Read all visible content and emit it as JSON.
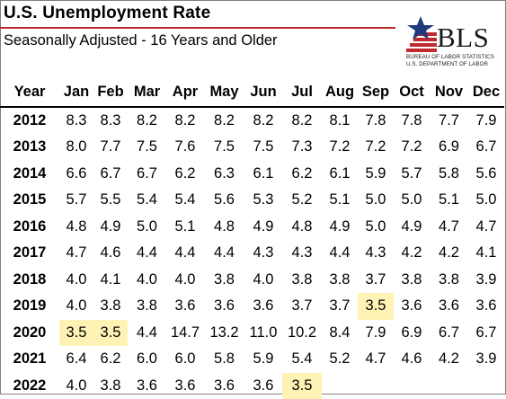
{
  "title": "U.S. Unemployment Rate",
  "subtitle": "Seasonally Adjusted - 16 Years and Older",
  "logo": {
    "name": "BLS",
    "line1": "BUREAU OF LABOR STATISTICS",
    "line2": "U.S. DEPARTMENT OF LABOR",
    "colors": {
      "red": "#c0292e",
      "blue": "#1f3a7a"
    }
  },
  "highlight_color": "#fff2b5",
  "columns": [
    "Year",
    "Jan",
    "Feb",
    "Mar",
    "Apr",
    "May",
    "Jun",
    "Jul",
    "Aug",
    "Sep",
    "Oct",
    "Nov",
    "Dec"
  ],
  "rows": [
    {
      "year": "2012",
      "values": [
        "8.3",
        "8.3",
        "8.2",
        "8.2",
        "8.2",
        "8.2",
        "8.2",
        "8.1",
        "7.8",
        "7.8",
        "7.7",
        "7.9"
      ]
    },
    {
      "year": "2013",
      "values": [
        "8.0",
        "7.7",
        "7.5",
        "7.6",
        "7.5",
        "7.5",
        "7.3",
        "7.2",
        "7.2",
        "7.2",
        "6.9",
        "6.7"
      ]
    },
    {
      "year": "2014",
      "values": [
        "6.6",
        "6.7",
        "6.7",
        "6.2",
        "6.3",
        "6.1",
        "6.2",
        "6.1",
        "5.9",
        "5.7",
        "5.8",
        "5.6"
      ]
    },
    {
      "year": "2015",
      "values": [
        "5.7",
        "5.5",
        "5.4",
        "5.4",
        "5.6",
        "5.3",
        "5.2",
        "5.1",
        "5.0",
        "5.0",
        "5.1",
        "5.0"
      ]
    },
    {
      "year": "2016",
      "values": [
        "4.8",
        "4.9",
        "5.0",
        "5.1",
        "4.8",
        "4.9",
        "4.8",
        "4.9",
        "5.0",
        "4.9",
        "4.7",
        "4.7"
      ]
    },
    {
      "year": "2017",
      "values": [
        "4.7",
        "4.6",
        "4.4",
        "4.4",
        "4.4",
        "4.3",
        "4.3",
        "4.4",
        "4.3",
        "4.2",
        "4.2",
        "4.1"
      ]
    },
    {
      "year": "2018",
      "values": [
        "4.0",
        "4.1",
        "4.0",
        "4.0",
        "3.8",
        "4.0",
        "3.8",
        "3.8",
        "3.7",
        "3.8",
        "3.8",
        "3.9"
      ]
    },
    {
      "year": "2019",
      "values": [
        "4.0",
        "3.8",
        "3.8",
        "3.6",
        "3.6",
        "3.6",
        "3.7",
        "3.7",
        "3.5",
        "3.6",
        "3.6",
        "3.6"
      ],
      "highlight": [
        8
      ]
    },
    {
      "year": "2020",
      "values": [
        "3.5",
        "3.5",
        "4.4",
        "14.7",
        "13.2",
        "11.0",
        "10.2",
        "8.4",
        "7.9",
        "6.9",
        "6.7",
        "6.7"
      ],
      "highlight": [
        0,
        1
      ]
    },
    {
      "year": "2021",
      "values": [
        "6.4",
        "6.2",
        "6.0",
        "6.0",
        "5.8",
        "5.9",
        "5.4",
        "5.2",
        "4.7",
        "4.6",
        "4.2",
        "3.9"
      ]
    },
    {
      "year": "2022",
      "values": [
        "4.0",
        "3.8",
        "3.6",
        "3.6",
        "3.6",
        "3.6",
        "3.5",
        "",
        "",
        "",
        "",
        ""
      ],
      "highlight": [
        6
      ]
    }
  ]
}
